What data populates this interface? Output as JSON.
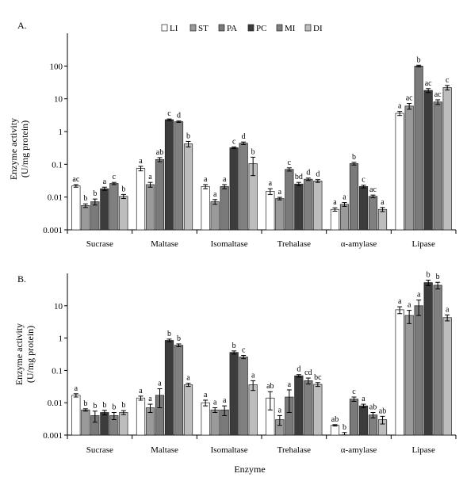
{
  "legend": [
    "LI",
    "ST",
    "PA",
    "PC",
    "MI",
    "DI"
  ],
  "colors": [
    "#ffffff",
    "#9a9a9a",
    "#7a7a7a",
    "#3c3c3c",
    "#808080",
    "#bdbdbd"
  ],
  "xlabel": "Enzyme",
  "chart_data": [
    {
      "type": "bar",
      "panel_label": "A.",
      "ylabel_lines": [
        "Enzyme activity",
        "(U/mg protein)"
      ],
      "yscale": "log",
      "ylim": [
        0.001,
        1000
      ],
      "ytick_labels": [
        "0.001",
        "0.01",
        "0.1",
        "1",
        "10",
        "100"
      ],
      "categories": [
        "Sucrase",
        "Maltase",
        "Isomaltase",
        "Trehalase",
        "α-amylase",
        "Lipase"
      ],
      "series": [
        {
          "name": "LI",
          "values": [
            0.022,
            0.075,
            0.021,
            0.015,
            0.0042,
            3.6
          ],
          "errors": [
            0.002,
            0.012,
            0.003,
            0.003,
            0.0005,
            0.5
          ]
        },
        {
          "name": "ST",
          "values": [
            0.0055,
            0.024,
            0.0072,
            0.009,
            0.006,
            6.0
          ],
          "errors": [
            0.0007,
            0.004,
            0.0012,
            0.0008,
            0.0008,
            1.2
          ]
        },
        {
          "name": "PA",
          "values": [
            0.0072,
            0.14,
            0.021,
            0.07,
            0.105,
            100
          ],
          "errors": [
            0.0015,
            0.02,
            0.003,
            0.008,
            0.01,
            6
          ]
        },
        {
          "name": "PC",
          "values": [
            0.018,
            2.3,
            0.32,
            0.025,
            0.021,
            18
          ],
          "errors": [
            0.002,
            0.12,
            0.02,
            0.003,
            0.002,
            2.5
          ]
        },
        {
          "name": "MI",
          "values": [
            0.026,
            2.0,
            0.44,
            0.035,
            0.0105,
            8.0
          ],
          "errors": [
            0.002,
            0.1,
            0.04,
            0.003,
            0.001,
            1.3
          ]
        },
        {
          "name": "DI",
          "values": [
            0.0105,
            0.42,
            0.105,
            0.031,
            0.0042,
            22
          ],
          "errors": [
            0.0015,
            0.08,
            0.06,
            0.003,
            0.0006,
            3.5
          ]
        }
      ],
      "letters": [
        [
          "ac",
          "b",
          "b",
          "a",
          "c",
          "b"
        ],
        [
          "a",
          "a",
          "ab",
          "c",
          "d",
          "b"
        ],
        [
          "a",
          "a",
          "a",
          "c",
          "d",
          "b"
        ],
        [
          "a",
          "a",
          "c",
          "bd",
          "d",
          "d"
        ],
        [
          "a",
          "a",
          "b",
          "c",
          "ac",
          "a"
        ],
        [
          "a",
          "ac",
          "b",
          "ac",
          "ac",
          "c"
        ]
      ]
    },
    {
      "type": "bar",
      "panel_label": "B.",
      "ylabel_lines": [
        "Enzyme activity",
        "(U/mg protein)"
      ],
      "yscale": "log",
      "ylim": [
        0.001,
        100
      ],
      "ytick_labels": [
        "0.001",
        "0.01",
        "0.1",
        "1",
        "10"
      ],
      "categories": [
        "Sucrase",
        "Maltase",
        "Isomaltase",
        "Trehalase",
        "α-amylase",
        "Lipase"
      ],
      "series": [
        {
          "name": "LI",
          "values": [
            0.017,
            0.014,
            0.01,
            0.014,
            0.002,
            7.5
          ],
          "errors": [
            0.002,
            0.002,
            0.002,
            0.008,
            0.0001,
            1.8
          ]
        },
        {
          "name": "ST",
          "values": [
            0.006,
            0.007,
            0.006,
            0.003,
            0.001,
            5.0
          ],
          "errors": [
            0.0005,
            0.002,
            0.001,
            0.001,
            0.0002,
            2.2
          ]
        },
        {
          "name": "PA",
          "values": [
            0.004,
            0.017,
            0.006,
            0.015,
            0.013,
            10
          ],
          "errors": [
            0.0015,
            0.01,
            0.002,
            0.01,
            0.002,
            5
          ]
        },
        {
          "name": "PC",
          "values": [
            0.005,
            0.85,
            0.36,
            0.068,
            0.008,
            52
          ],
          "errors": [
            0.0008,
            0.08,
            0.04,
            0.006,
            0.001,
            10
          ]
        },
        {
          "name": "MI",
          "values": [
            0.004,
            0.6,
            0.26,
            0.048,
            0.0042,
            43
          ],
          "errors": [
            0.001,
            0.06,
            0.03,
            0.01,
            0.0008,
            10
          ]
        },
        {
          "name": "DI",
          "values": [
            0.005,
            0.036,
            0.036,
            0.037,
            0.003,
            4.3
          ],
          "errors": [
            0.0007,
            0.004,
            0.012,
            0.005,
            0.0008,
            0.9
          ]
        }
      ],
      "letters": [
        [
          "a",
          "b",
          "b",
          "b",
          "b",
          "b"
        ],
        [
          "a",
          "a",
          "a",
          "b",
          "b",
          "a"
        ],
        [
          "a",
          "a",
          "a",
          "b",
          "c",
          "a"
        ],
        [
          "ab",
          "a",
          "a",
          "d",
          "cd",
          "bc"
        ],
        [
          "ab",
          "b",
          "c",
          "a",
          "ab",
          "ab"
        ],
        [
          "a",
          "a",
          "a",
          "b",
          "b",
          "a"
        ]
      ]
    }
  ]
}
